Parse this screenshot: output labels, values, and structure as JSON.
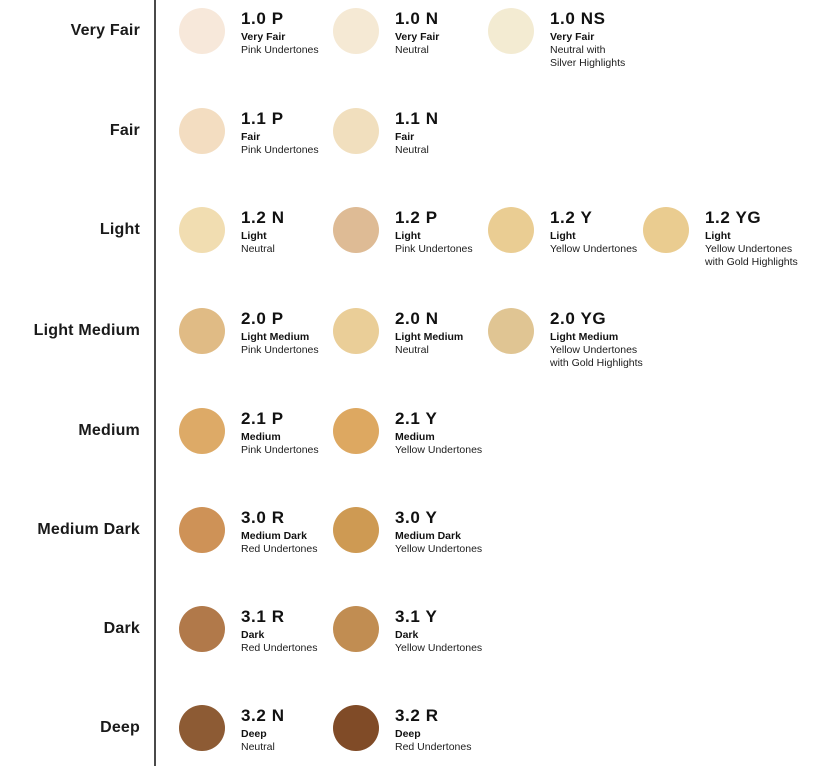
{
  "page": {
    "background_color": "#ffffff",
    "divider_color": "#4a4a4a",
    "text_color": "#111111"
  },
  "chart": {
    "rows": [
      {
        "label": "Very Fair",
        "swatches": [
          {
            "code": "1.0 P",
            "name": "Very Fair",
            "undertone": "Pink Undertones",
            "color": "#F7E8DA"
          },
          {
            "code": "1.0 N",
            "name": "Very Fair",
            "undertone": "Neutral",
            "color": "#F5E9D4"
          },
          {
            "code": "1.0 NS",
            "name": "Very Fair",
            "undertone": "Neutral with\nSilver Highlights",
            "color": "#F3EBD2"
          }
        ]
      },
      {
        "label": "Fair",
        "swatches": [
          {
            "code": "1.1 P",
            "name": "Fair",
            "undertone": "Pink Undertones",
            "color": "#F3DDC1"
          },
          {
            "code": "1.1 N",
            "name": "Fair",
            "undertone": "Neutral",
            "color": "#F1DFBE"
          }
        ]
      },
      {
        "label": "Light",
        "swatches": [
          {
            "code": "1.2 N",
            "name": "Light",
            "undertone": "Neutral",
            "color": "#F1DDB1"
          },
          {
            "code": "1.2 P",
            "name": "Light",
            "undertone": "Pink Undertones",
            "color": "#DEBB95"
          },
          {
            "code": "1.2 Y",
            "name": "Light",
            "undertone": "Yellow Undertones",
            "color": "#EACD93"
          },
          {
            "code": "1.2 YG",
            "name": "Light",
            "undertone": "Yellow Undertones\nwith Gold Highlights",
            "color": "#EACC90"
          }
        ]
      },
      {
        "label": "Light Medium",
        "swatches": [
          {
            "code": "2.0 P",
            "name": "Light Medium",
            "undertone": "Pink Undertones",
            "color": "#E0BB85"
          },
          {
            "code": "2.0 N",
            "name": "Light Medium",
            "undertone": "Neutral",
            "color": "#EACE98"
          },
          {
            "code": "2.0 YG",
            "name": "Light Medium",
            "undertone": "Yellow Undertones\nwith Gold Highlights",
            "color": "#E0C593"
          }
        ]
      },
      {
        "label": "Medium",
        "swatches": [
          {
            "code": "2.1 P",
            "name": "Medium",
            "undertone": "Pink Undertones",
            "color": "#DDAA67"
          },
          {
            "code": "2.1 Y",
            "name": "Medium",
            "undertone": "Yellow Undertones",
            "color": "#DDA861"
          }
        ]
      },
      {
        "label": "Medium Dark",
        "swatches": [
          {
            "code": "3.0 R",
            "name": "Medium Dark",
            "undertone": "Red Undertones",
            "color": "#CE9257"
          },
          {
            "code": "3.0 Y",
            "name": "Medium Dark",
            "undertone": "Yellow Undertones",
            "color": "#CE9A53"
          }
        ]
      },
      {
        "label": "Dark",
        "swatches": [
          {
            "code": "3.1 R",
            "name": "Dark",
            "undertone": "Red Undertones",
            "color": "#B1794A"
          },
          {
            "code": "3.1 Y",
            "name": "Dark",
            "undertone": "Yellow Undertones",
            "color": "#C18D52"
          }
        ]
      },
      {
        "label": "Deep",
        "swatches": [
          {
            "code": "3.2 N",
            "name": "Deep",
            "undertone": "Neutral",
            "color": "#8D5B34"
          },
          {
            "code": "3.2 R",
            "name": "Deep",
            "undertone": "Red Undertones",
            "color": "#804B27"
          }
        ]
      }
    ]
  }
}
